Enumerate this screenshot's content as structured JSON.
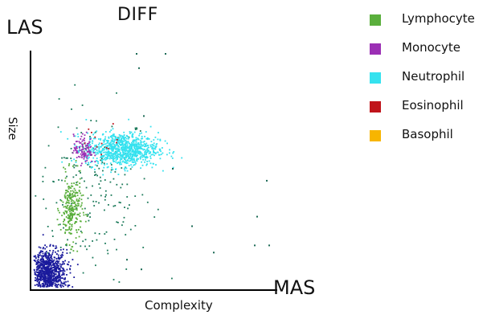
{
  "chart_data": {
    "type": "scatter",
    "title": "DIFF",
    "y_axis_name": "LAS",
    "x_axis_name": "MAS",
    "ylabel": "Size",
    "xlabel": "Complexity",
    "grid": false,
    "legend_placement": "right",
    "series": [
      {
        "name": "Lymphocyte",
        "color": "#5aaf3c",
        "clusters": [
          {
            "cx": 0.16,
            "cy": 0.33,
            "sx": 0.022,
            "sy": 0.07,
            "n": 260
          }
        ]
      },
      {
        "name": "Monocyte",
        "color": "#9b2fb4",
        "clusters": [
          {
            "cx": 0.21,
            "cy": 0.58,
            "sx": 0.02,
            "sy": 0.03,
            "n": 110
          }
        ]
      },
      {
        "name": "Neutrophil",
        "color": "#35e2ef",
        "clusters": [
          {
            "cx": 0.37,
            "cy": 0.58,
            "sx": 0.075,
            "sy": 0.035,
            "n": 900
          }
        ]
      },
      {
        "name": "Eosinophil",
        "color": "#c0141b",
        "clusters": [
          {
            "cx": 0.3,
            "cy": 0.62,
            "sx": 0.05,
            "sy": 0.03,
            "n": 12
          }
        ]
      },
      {
        "name": "Basophil",
        "color": "#f7b500",
        "clusters": []
      },
      {
        "name": "",
        "color": "#1a1a9c",
        "clusters": [
          {
            "cx": 0.06,
            "cy": 0.06,
            "sx": 0.04,
            "sy": 0.05,
            "n": 950
          }
        ]
      },
      {
        "name": "",
        "color": "#1c7a5a",
        "clusters": [
          {
            "cx": 0.25,
            "cy": 0.4,
            "sx": 0.12,
            "sy": 0.18,
            "n": 200
          }
        ]
      }
    ]
  }
}
